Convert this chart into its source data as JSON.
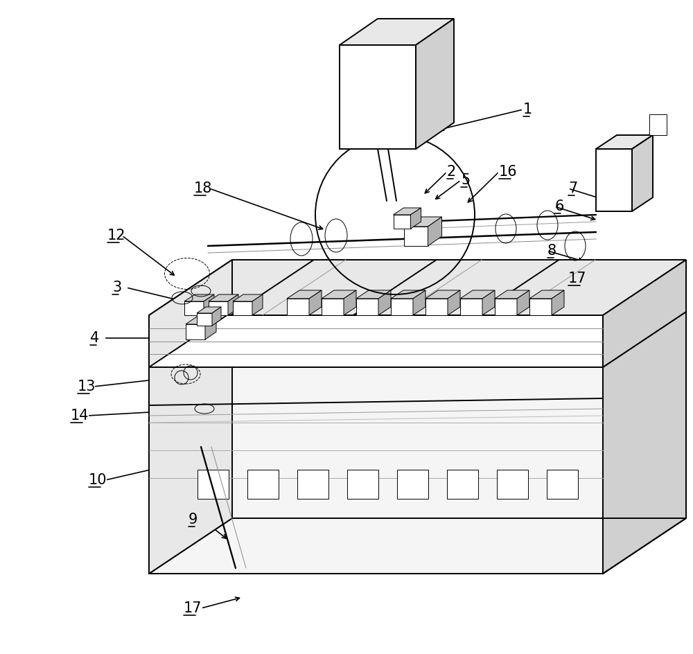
{
  "bg_color": "#ffffff",
  "lc": "#000000",
  "lw": 1.4,
  "lw_thin": 0.7,
  "lw_thick": 2.0,
  "fs": 15,
  "gray_light": "#e8e8e8",
  "gray_mid": "#d0d0d0",
  "gray_dark": "#b0b0b0",
  "white": "#ffffff",
  "off_white": "#f5f5f5"
}
